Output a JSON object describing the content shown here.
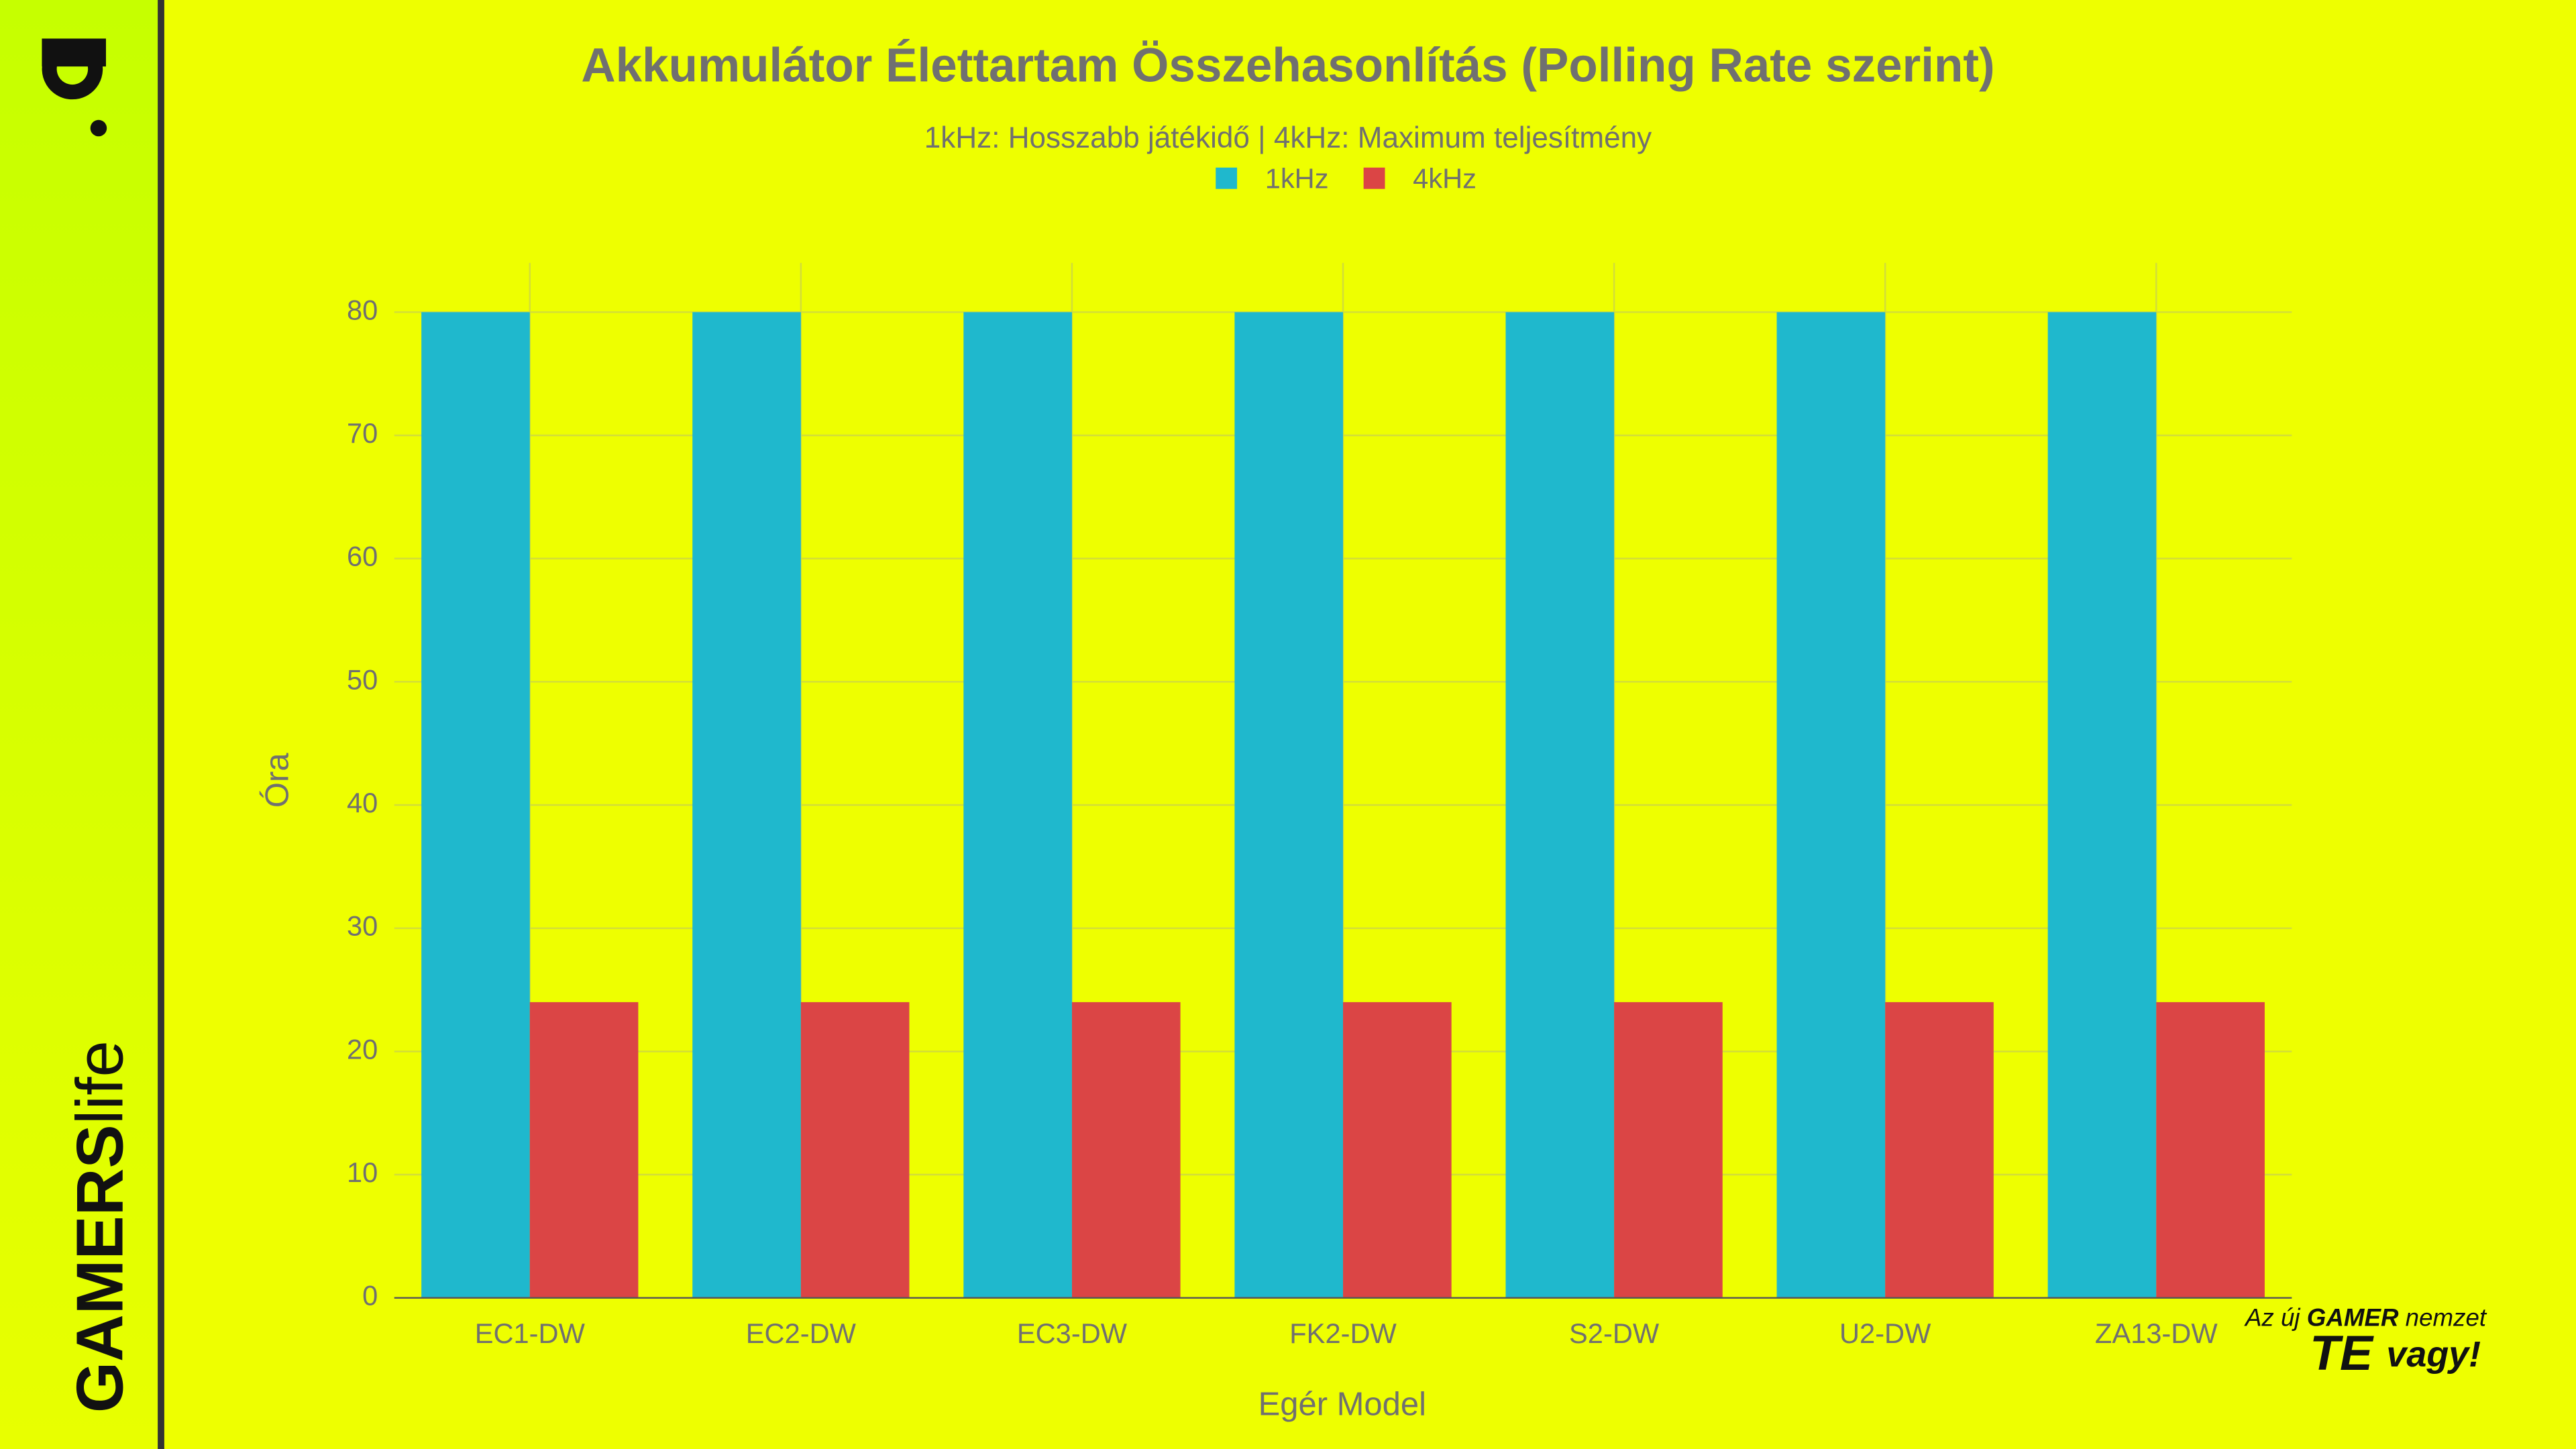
{
  "chart_data": {
    "type": "bar",
    "title": "Akkumulátor Élettartam Összehasonlítás (Polling Rate szerint)",
    "subtitle": "1kHz: Hosszabb játékidő | 4kHz: Maximum teljesítmény",
    "x_label": "Egér Model",
    "y_label": "Óra",
    "categories": [
      "EC1-DW",
      "EC2-DW",
      "EC3-DW",
      "FK2-DW",
      "S2-DW",
      "U2-DW",
      "ZA13-DW"
    ],
    "series": [
      {
        "name": "1kHz",
        "color": "#1fb8cd",
        "values": [
          80,
          80,
          80,
          80,
          80,
          80,
          80
        ]
      },
      {
        "name": "4kHz",
        "color": "#db4545",
        "values": [
          24,
          24,
          24,
          24,
          24,
          24,
          24
        ]
      }
    ],
    "ylim": [
      0,
      84
    ],
    "yticks": [
      0,
      10,
      20,
      30,
      40,
      50,
      60,
      70,
      80
    ],
    "grid": true
  },
  "branding": {
    "logo_bold": "GAMERS",
    "logo_light": "life",
    "tagline_1": "Az új",
    "tagline_2": "GAMER",
    "tagline_3": "nemzet",
    "tagline_4": "TE",
    "tagline_5": "vagy!"
  }
}
